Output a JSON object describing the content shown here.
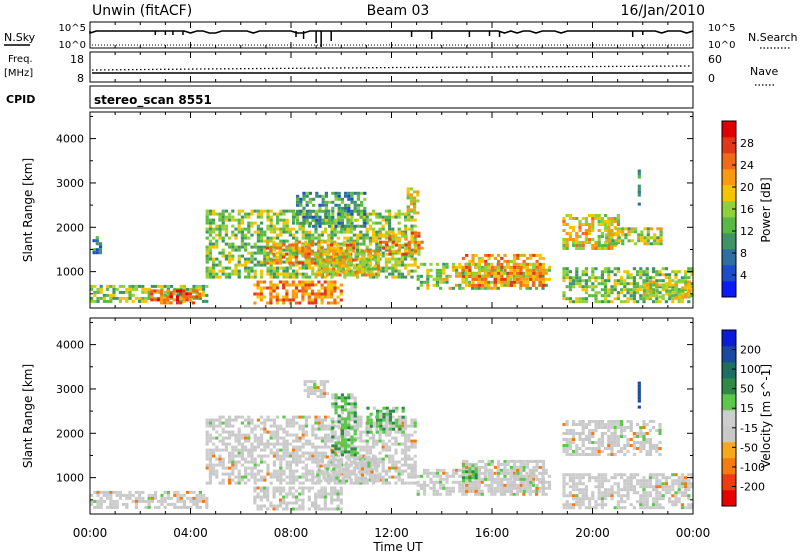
{
  "header": {
    "title": "Unwin (fitACF)",
    "beam": "Beam 03",
    "date": "16/Jan/2010"
  },
  "strips": {
    "nsky": {
      "label": "N.Sky",
      "ticks": [
        "10^5",
        "10^0"
      ]
    },
    "nsearch": {
      "label": "N.Search",
      "ticks": [
        "10^5",
        "10^0"
      ]
    },
    "freq": {
      "label_line1": "Freq.",
      "label_line2": "[MHz]",
      "ticks": [
        "18",
        "8"
      ]
    },
    "nave": {
      "label": "Nave",
      "ticks": [
        "60",
        "0"
      ]
    },
    "cpid": {
      "label": "CPID",
      "value": "stereo_scan 8551"
    }
  },
  "chart_data": [
    {
      "type": "heatmap",
      "name": "power",
      "xlabel": "Time UT",
      "ylabel": "Slant Range [km]",
      "xlim": [
        0,
        24
      ],
      "ylim": [
        180,
        4600
      ],
      "yticks": [
        1000,
        2000,
        3000,
        4000
      ],
      "colorbar": {
        "label": "Power [dB]",
        "ticks": [
          "4",
          "8",
          "12",
          "16",
          "20",
          "24",
          "28"
        ],
        "colors": [
          "#0a1cf5",
          "#1c4cc8",
          "#2e6ea0",
          "#3f9466",
          "#5ab845",
          "#8fd13a",
          "#f5c400",
          "#f89a10",
          "#f06a18",
          "#e03818",
          "#e00000"
        ]
      },
      "regions": [
        {
          "t0": 0.0,
          "t1": 4.6,
          "r0": 300,
          "r1": 700,
          "intensity": 0.45
        },
        {
          "t0": 2.4,
          "t1": 4.4,
          "r0": 300,
          "r1": 600,
          "intensity": 0.85
        },
        {
          "t0": 4.6,
          "t1": 13.0,
          "r0": 900,
          "r1": 2400,
          "intensity": 0.45
        },
        {
          "t0": 7.0,
          "t1": 10.5,
          "r0": 1200,
          "r1": 1700,
          "intensity": 0.7
        },
        {
          "t0": 11.5,
          "t1": 13.2,
          "r0": 1400,
          "r1": 1900,
          "intensity": 0.7
        },
        {
          "t0": 6.5,
          "t1": 10.0,
          "r0": 300,
          "r1": 800,
          "intensity": 0.75
        },
        {
          "t0": 9.0,
          "t1": 11.5,
          "r0": 900,
          "r1": 1500,
          "intensity": 0.6
        },
        {
          "t0": 13.0,
          "t1": 18.3,
          "r0": 600,
          "r1": 1200,
          "intensity": 0.5
        },
        {
          "t0": 14.8,
          "t1": 18.0,
          "r0": 700,
          "r1": 1400,
          "intensity": 0.7
        },
        {
          "t0": 12.6,
          "t1": 13.1,
          "r0": 2300,
          "r1": 2900,
          "intensity": 0.55
        },
        {
          "t0": 8.2,
          "t1": 11.0,
          "r0": 2000,
          "r1": 2800,
          "intensity": 0.3
        },
        {
          "t0": 18.8,
          "t1": 21.0,
          "r0": 1500,
          "r1": 2300,
          "intensity": 0.6
        },
        {
          "t0": 20.5,
          "t1": 22.7,
          "r0": 1600,
          "r1": 2000,
          "intensity": 0.5
        },
        {
          "t0": 18.8,
          "t1": 24.0,
          "r0": 300,
          "r1": 1100,
          "intensity": 0.45
        },
        {
          "t0": 22.0,
          "t1": 23.8,
          "r0": 400,
          "r1": 800,
          "intensity": 0.55
        },
        {
          "t0": 21.8,
          "t1": 21.9,
          "r0": 2500,
          "r1": 3300,
          "intensity": 0.35
        },
        {
          "t0": 0.1,
          "t1": 0.4,
          "r0": 1400,
          "r1": 1800,
          "intensity": 0.25
        }
      ]
    },
    {
      "type": "heatmap",
      "name": "velocity",
      "xlabel": "Time UT",
      "ylabel": "Slant Range [km]",
      "xlim": [
        0,
        24
      ],
      "ylim": [
        180,
        4600
      ],
      "yticks": [
        1000,
        2000,
        3000,
        4000
      ],
      "colorbar": {
        "label": "Velocity [m s^-1]",
        "ticks": [
          "-200",
          "-100",
          "-50",
          "-15",
          "15",
          "50",
          "100",
          "200"
        ],
        "colors": [
          "#e60000",
          "#f03a10",
          "#f57a10",
          "#f7a818",
          "#c8c8c8",
          "#cdcdcd",
          "#5ac84a",
          "#2e8a46",
          "#1e6e62",
          "#1a4aa0",
          "#0a1cd8"
        ]
      },
      "regions": [
        {
          "t0": 0.0,
          "t1": 4.6,
          "r0": 300,
          "r1": 700,
          "intensity": 0.2
        },
        {
          "t0": 4.6,
          "t1": 13.0,
          "r0": 900,
          "r1": 2400,
          "intensity": 0.2
        },
        {
          "t0": 6.5,
          "t1": 10.0,
          "r0": 300,
          "r1": 800,
          "intensity": 0.2
        },
        {
          "t0": 9.0,
          "t1": 11.5,
          "r0": 900,
          "r1": 1500,
          "intensity": 0.25
        },
        {
          "t0": 13.0,
          "t1": 18.3,
          "r0": 600,
          "r1": 1200,
          "intensity": 0.2
        },
        {
          "t0": 14.8,
          "t1": 18.0,
          "r0": 700,
          "r1": 1400,
          "intensity": 0.2
        },
        {
          "t0": 18.8,
          "t1": 24.0,
          "r0": 300,
          "r1": 1100,
          "intensity": 0.2
        },
        {
          "t0": 18.8,
          "t1": 22.7,
          "r0": 1500,
          "r1": 2300,
          "intensity": 0.2
        },
        {
          "t0": 9.6,
          "t1": 10.6,
          "r0": 1500,
          "r1": 2900,
          "intensity": 0.9
        },
        {
          "t0": 11.0,
          "t1": 12.5,
          "r0": 2000,
          "r1": 2600,
          "intensity": 0.85
        },
        {
          "t0": 8.5,
          "t1": 9.5,
          "r0": 2800,
          "r1": 3200,
          "intensity": 0.3
        },
        {
          "t0": 14.8,
          "t1": 15.4,
          "r0": 900,
          "r1": 1300,
          "intensity": 0.65
        },
        {
          "t0": 21.8,
          "t1": 21.9,
          "r0": 2500,
          "r1": 3300,
          "intensity": 0.95
        }
      ]
    }
  ],
  "time_axis": {
    "ticks": [
      "00:00",
      "04:00",
      "08:00",
      "12:00",
      "16:00",
      "20:00",
      "00:00"
    ],
    "label": "Time UT"
  }
}
